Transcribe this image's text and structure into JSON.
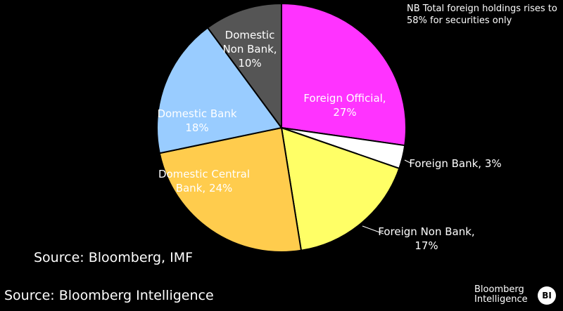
{
  "chart_data": {
    "type": "pie",
    "categories": [
      "Foreign Official,",
      "Foreign Bank,",
      "Foreign Non Bank,",
      "Domestic Central Bank,",
      "Domestic Bank",
      "Domestic Non Bank,"
    ],
    "values": [
      27,
      3,
      17,
      24,
      18,
      10
    ],
    "value_labels": [
      "27%",
      "3%",
      "17%",
      "24%",
      "18%",
      "10%"
    ],
    "colors": [
      "#ff33ff",
      "#ffffff",
      "#ffff66",
      "#ffcc4d",
      "#99ccff",
      "#555555"
    ],
    "annotation": "NB Total foreign holdings rises to 58% for securities only",
    "source": "Source: Bloomberg, IMF"
  },
  "footer": {
    "source": "Source: Bloomberg Intelligence",
    "logo": "Bloomberg Intelligence",
    "badge": "BI"
  }
}
